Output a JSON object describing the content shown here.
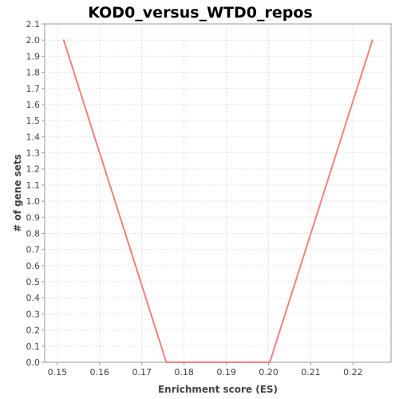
{
  "chart_data": {
    "type": "line",
    "title": "KOD0_versus_WTD0_repos",
    "xlabel": "Enrichment score (ES)",
    "ylabel": "# of gene sets",
    "xlim": [
      0.147,
      0.229
    ],
    "ylim": [
      0.0,
      2.1
    ],
    "xticks": [
      0.15,
      0.16,
      0.17,
      0.18,
      0.19,
      0.2,
      0.21,
      0.22
    ],
    "xtick_labels": [
      "0.15",
      "0.16",
      "0.17",
      "0.18",
      "0.19",
      "0.20",
      "0.21",
      "0.22"
    ],
    "yticks": [
      0.0,
      0.1,
      0.2,
      0.3,
      0.4,
      0.5,
      0.6,
      0.7,
      0.8,
      0.9,
      1.0,
      1.1,
      1.2,
      1.3,
      1.4,
      1.5,
      1.6,
      1.7,
      1.8,
      1.9,
      2.0,
      2.1
    ],
    "ytick_labels": [
      "0.0",
      "0.1",
      "0.2",
      "0.3",
      "0.4",
      "0.5",
      "0.6",
      "0.7",
      "0.8",
      "0.9",
      "1.0",
      "1.1",
      "1.2",
      "1.3",
      "1.4",
      "1.5",
      "1.6",
      "1.7",
      "1.8",
      "1.9",
      "2.0",
      "2.1"
    ],
    "grid": true,
    "legend": "none",
    "series": [
      {
        "color": "#f08080",
        "x": [
          0.1515,
          0.1758,
          0.2003,
          0.2246
        ],
        "y": [
          2.0,
          0.0,
          0.0,
          2.0
        ]
      }
    ]
  }
}
